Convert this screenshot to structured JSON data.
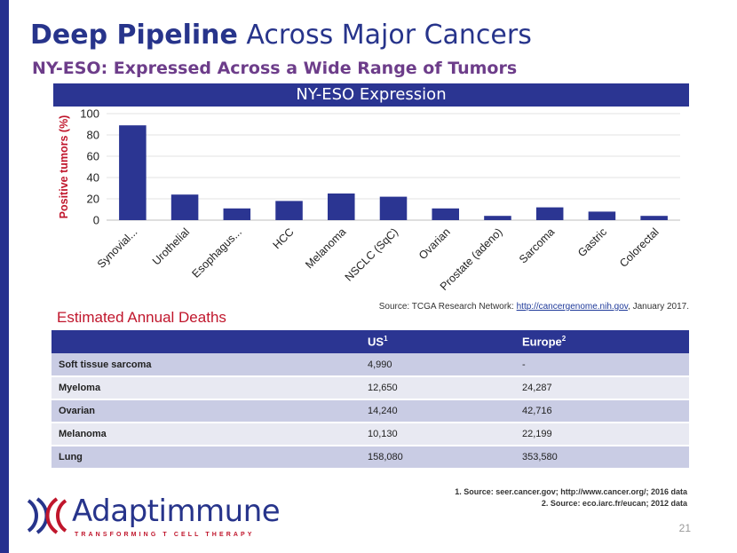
{
  "slide": {
    "title_highlight": "Deep Pipeline",
    "title_rest": " Across Major Cancers",
    "subtitle": "NY-ESO: Expressed Across a Wide Range of Tumors",
    "page_number": "21"
  },
  "colors": {
    "brand_blue": "#27348b",
    "header_blue": "#2b3592",
    "accent_red": "#c0162c",
    "purple": "#6d3d8a"
  },
  "chart_data": {
    "type": "bar",
    "title": "NY-ESO Expression",
    "xlabel": "",
    "ylabel": "Positive tumors (%)",
    "ylim": [
      0,
      100
    ],
    "yticks": [
      0,
      20,
      40,
      60,
      80,
      100
    ],
    "categories": [
      "Synovial...",
      "Urothelial",
      "Esophagus...",
      "HCC",
      "Melanoma",
      "NSCLC (SqC)",
      "Ovarian",
      "Prostate (adeno)",
      "Sarcoma",
      "Gastric",
      "Colorectal"
    ],
    "values": [
      89,
      24,
      11,
      18,
      25,
      22,
      11,
      4,
      12,
      8,
      4
    ],
    "grid": true,
    "bar_color": "#2b3592"
  },
  "source_note": {
    "prefix": "Source: TCGA Research Network: ",
    "link": "http://cancergenome.nih.gov",
    "suffix": ",  January 2017."
  },
  "deaths": {
    "title": "Estimated Annual Deaths",
    "headers": {
      "name": "",
      "us": "US",
      "us_sup": "1",
      "europe": "Europe",
      "europe_sup": "2"
    },
    "rows": [
      {
        "name": "Soft tissue sarcoma",
        "us": "4,990",
        "europe": "-"
      },
      {
        "name": "Myeloma",
        "us": "12,650",
        "europe": "24,287"
      },
      {
        "name": "Ovarian",
        "us": "14,240",
        "europe": "42,716"
      },
      {
        "name": "Melanoma",
        "us": "10,130",
        "europe": "22,199"
      },
      {
        "name": "Lung",
        "us": "158,080",
        "europe": "353,580"
      }
    ]
  },
  "footnotes": [
    "1. Source: seer.cancer.gov; http://www.cancer.org/; 2016 data",
    "2. Source: eco.iarc.fr/eucan; 2012 data"
  ],
  "logo": {
    "name": "Adaptimmune",
    "tagline": "TRANSFORMING T CELL THERAPY"
  }
}
